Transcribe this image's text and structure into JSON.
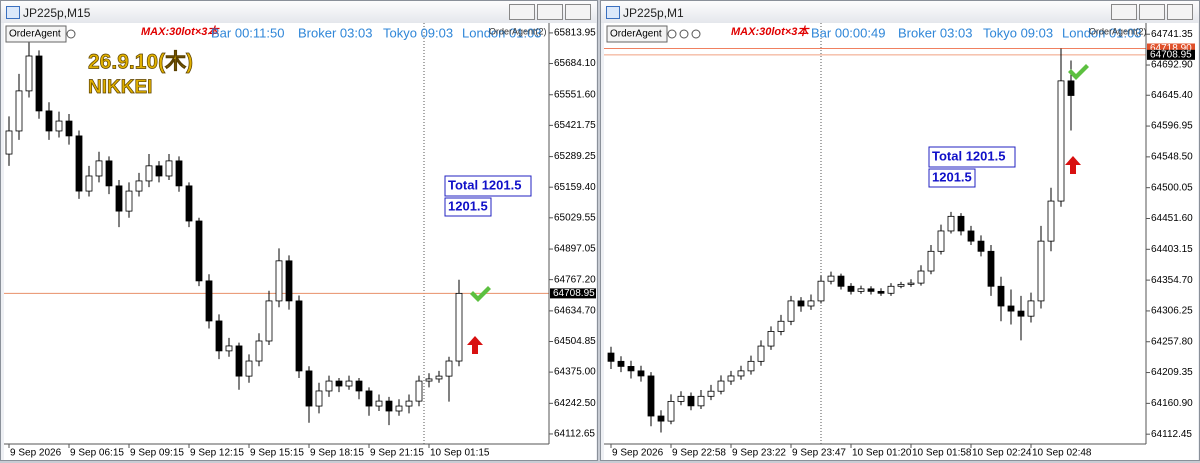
{
  "chart_data": [
    {
      "type": "candlestick",
      "title": "JP225p,M15",
      "annotations": {
        "ea_button": "OrderAgent",
        "max_note": "MAX:30lot×3本",
        "bar_timer": "Bar 00:11:50",
        "broker_time": "Broker 03:03",
        "tokyo_time": "Tokyo 09:03",
        "london_time": "London 01:03",
        "ea_label": "OrderAgent(2)",
        "date_label": "26.9.10(木)",
        "symbol_label": "NIKKEI",
        "total_label": "Total 1201.5",
        "total_value": "1201.5"
      },
      "categories": [
        "9 Sep 2026",
        null,
        null,
        null,
        null,
        null,
        "9 Sep 06:15",
        null,
        null,
        null,
        null,
        null,
        "9 Sep 09:15",
        null,
        null,
        null,
        null,
        null,
        "9 Sep 12:15",
        null,
        null,
        null,
        null,
        null,
        "9 Sep 15:15",
        null,
        null,
        null,
        null,
        null,
        "9 Sep 18:15",
        null,
        null,
        null,
        null,
        null,
        "9 Sep 21:15",
        null,
        null,
        null,
        null,
        null,
        "10 Sep 01:15",
        null,
        null,
        null
      ],
      "open": [
        65300,
        65398,
        65568,
        65716,
        65483,
        65398,
        65440,
        65377,
        65143,
        65207,
        65271,
        65165,
        65058,
        65143,
        65186,
        65250,
        65207,
        65271,
        65165,
        65016,
        64762,
        64592,
        64465,
        64486,
        64358,
        64422,
        64507,
        64677,
        64847,
        64677,
        64380,
        64231,
        64295,
        64337,
        64316,
        64337,
        64295,
        64231,
        64252,
        64210,
        64231,
        64252,
        64337,
        64346,
        64358,
        64422
      ],
      "high": [
        65460,
        65640,
        65790,
        65740,
        65520,
        65480,
        65470,
        65400,
        65250,
        65310,
        65290,
        65190,
        65180,
        65220,
        65300,
        65270,
        65300,
        65290,
        65180,
        65030,
        64790,
        64620,
        64520,
        64500,
        64450,
        64540,
        64720,
        64900,
        64870,
        64700,
        64400,
        64330,
        64360,
        64350,
        64360,
        64350,
        64310,
        64280,
        64270,
        64260,
        64280,
        64360,
        64370,
        64380,
        64440,
        64767
      ],
      "low": [
        65250,
        65360,
        65540,
        65450,
        65360,
        65370,
        65340,
        65110,
        65120,
        65180,
        65130,
        64990,
        65030,
        65120,
        65160,
        65180,
        65190,
        65140,
        64990,
        64740,
        64560,
        64430,
        64440,
        64300,
        64330,
        64400,
        64490,
        64650,
        64640,
        64350,
        64160,
        64200,
        64270,
        64290,
        64300,
        64260,
        64190,
        64210,
        64150,
        64190,
        64200,
        64230,
        64310,
        64330,
        64250,
        64400
      ],
      "close": [
        65398,
        65568,
        65716,
        65483,
        65398,
        65440,
        65377,
        65143,
        65207,
        65271,
        65165,
        65058,
        65143,
        65186,
        65250,
        65207,
        65271,
        65165,
        65016,
        64762,
        64592,
        64465,
        64486,
        64358,
        64422,
        64507,
        64677,
        64847,
        64677,
        64380,
        64231,
        64295,
        64337,
        64316,
        64337,
        64295,
        64231,
        64252,
        64210,
        64231,
        64252,
        64337,
        64346,
        64358,
        64422,
        64709
      ],
      "up_color": "#ffffff",
      "down_color": "#000000",
      "ylim": [
        64070,
        65856
      ],
      "yticks": [
        65813.95,
        {
          "value": 65684.1,
          "label": "65684.10"
        },
        {
          "value": 65551.6,
          "label": "65551.60"
        },
        65421.75,
        65289.25,
        {
          "value": 65159.4,
          "label": "65159.40"
        },
        65029.55,
        64897.05,
        {
          "value": 64767.2,
          "label": "64767.20"
        },
        {
          "value": 64634.7,
          "label": "64634.70"
        },
        64504.85,
        {
          "value": 64375,
          "label": "64375.00"
        },
        {
          "value": 64242.5,
          "label": "64242.50"
        },
        64112.65
      ],
      "price_lines": [
        {
          "value": 64708.95,
          "color": "#e8906a",
          "label_bg": "#000000"
        }
      ]
    },
    {
      "type": "candlestick",
      "title": "JP225p,M1",
      "annotations": {
        "ea_button": "OrderAgent",
        "max_note": "MAX:30lot×3本",
        "bar_timer": "Bar 00:00:49",
        "broker_time": "Broker 03:03",
        "tokyo_time": "Tokyo 09:03",
        "london_time": "London 01:03",
        "ea_label": "OrderAgent(2)",
        "total_label": "Total 1201.5",
        "total_value": "1201.5"
      },
      "categories": [
        "9 Sep 2026",
        null,
        null,
        null,
        null,
        null,
        "9 Sep 22:58",
        null,
        null,
        null,
        null,
        null,
        "9 Sep 23:22",
        null,
        null,
        null,
        null,
        null,
        "9 Sep 23:47",
        null,
        null,
        null,
        null,
        null,
        "10 Sep 01:20",
        null,
        null,
        null,
        null,
        null,
        "10 Sep 01:58",
        null,
        null,
        null,
        null,
        null,
        "10 Sep 02:24",
        null,
        null,
        null,
        null,
        null,
        "10 Sep 02:48",
        null,
        null,
        null,
        null
      ],
      "open": [
        64240,
        64227,
        64219,
        64212,
        64204,
        64141,
        64133,
        64164,
        64172,
        64157,
        64172,
        64180,
        64196,
        64204,
        64212,
        64227,
        64251,
        64274,
        64290,
        64322,
        64314,
        64322,
        64353,
        64361,
        64345,
        64337,
        64341,
        64337,
        64334,
        64345,
        64348,
        64350,
        64369,
        64400,
        64432,
        64455,
        64432,
        64416,
        64400,
        64345,
        64314,
        64306,
        64298,
        64322,
        64416,
        64479,
        64668
      ],
      "high": [
        64250,
        64235,
        64228,
        64220,
        64210,
        64150,
        64175,
        64180,
        64178,
        64182,
        64190,
        64205,
        64212,
        64220,
        64236,
        64260,
        64282,
        64300,
        64330,
        64328,
        64332,
        64362,
        64368,
        64365,
        64350,
        64346,
        64345,
        64342,
        64350,
        64352,
        64356,
        64378,
        64410,
        64442,
        64462,
        64460,
        64440,
        64425,
        64410,
        64360,
        64340,
        64330,
        64335,
        64440,
        64500,
        64719,
        64700
      ],
      "low": [
        64215,
        64210,
        64200,
        64195,
        64125,
        64115,
        64128,
        64158,
        64150,
        64152,
        64166,
        64175,
        64190,
        64198,
        64206,
        64220,
        64245,
        64268,
        64284,
        64305,
        64308,
        64318,
        64348,
        64340,
        64332,
        64333,
        64332,
        64330,
        64330,
        64342,
        64344,
        64346,
        64364,
        64395,
        64428,
        64425,
        64410,
        64392,
        64330,
        64290,
        64285,
        64260,
        64288,
        64310,
        64400,
        64470,
        64590
      ],
      "close": [
        64227,
        64219,
        64212,
        64204,
        64141,
        64133,
        64164,
        64172,
        64157,
        64172,
        64180,
        64196,
        64204,
        64212,
        64227,
        64251,
        64274,
        64290,
        64322,
        64314,
        64322,
        64353,
        64361,
        64345,
        64337,
        64341,
        64337,
        64334,
        64345,
        64348,
        64350,
        64369,
        64400,
        64432,
        64455,
        64432,
        64416,
        64400,
        64345,
        64314,
        64306,
        64298,
        64322,
        64416,
        64479,
        64668,
        64645
      ],
      "up_color": "#ffffff",
      "down_color": "#000000",
      "ylim": [
        64097,
        64759
      ],
      "yticks": [
        64741.35,
        {
          "value": 64692.9,
          "label": "64692.90"
        },
        {
          "value": 64645.4,
          "label": "64645.40"
        },
        64596.95,
        {
          "value": 64548.5,
          "label": "64548.50"
        },
        64500.05,
        {
          "value": 64451.6,
          "label": "64451.60"
        },
        64403.15,
        {
          "value": 64354.7,
          "label": "64354.70"
        },
        64306.25,
        {
          "value": 64257.8,
          "label": "64257.80"
        },
        64209.35,
        {
          "value": 64160.9,
          "label": "64160.90"
        },
        64112.45
      ],
      "price_lines": [
        {
          "value": 64718.9,
          "label": "64718.90",
          "color": "#f08060",
          "label_bg": "#e0502a"
        },
        {
          "value": 64708.95,
          "color": "#f0a080",
          "label_bg": "#000000"
        }
      ]
    }
  ]
}
